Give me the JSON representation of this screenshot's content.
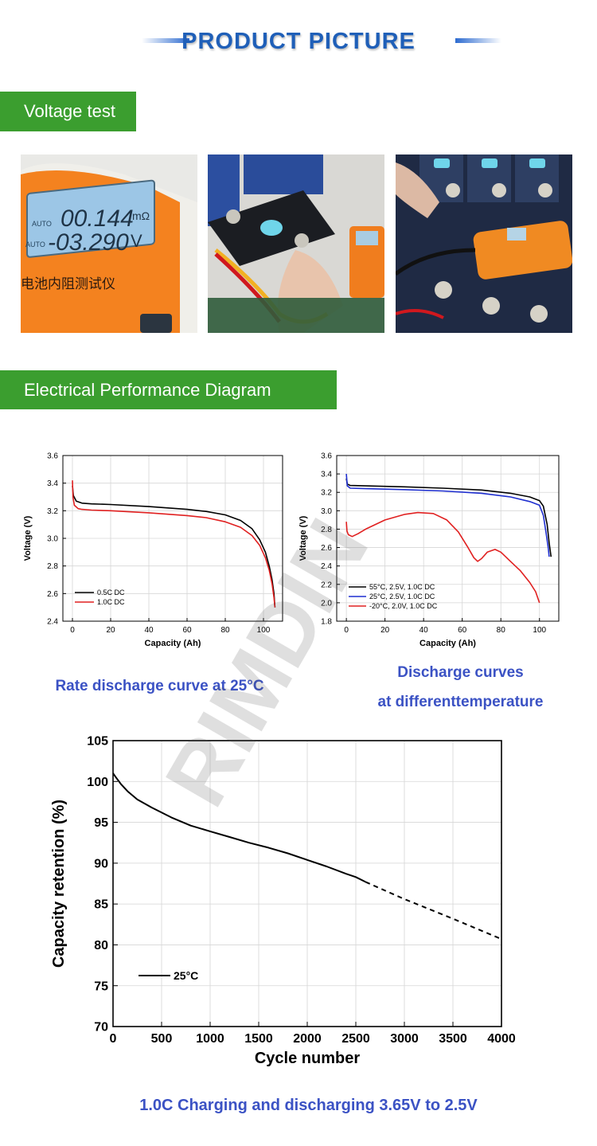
{
  "header": {
    "title": "PRODUCT PICTURE"
  },
  "sections": {
    "voltage_test": "Voltage test",
    "electrical_performance": "Electrical Performance Diagram"
  },
  "photos": {
    "meter_reading_1": "00.144",
    "meter_unit_1": "mΩ",
    "meter_reading_2": "-03.290",
    "meter_unit_2": "V",
    "meter_auto": "AUTO",
    "meter_brand_text": "电池内阻测试仪"
  },
  "captions": {
    "rate_discharge": "Rate discharge curve at 25°C",
    "discharge_temp_line1": "Discharge curves",
    "discharge_temp_line2": "at differenttemperature",
    "cycle": "1.0C Charging and discharging 3.65V to 2.5V"
  },
  "watermark": "RIMDIN",
  "colors": {
    "accent_blue": "#1f5fb8",
    "banner_green": "#3b9e2f",
    "caption_blue": "#3b52c4"
  },
  "chart_data": [
    {
      "type": "line",
      "xlabel": "Capacity (Ah)",
      "ylabel": "Voltage (V)",
      "xlim": [
        -5,
        110
      ],
      "ylim": [
        2.4,
        3.6
      ],
      "xticks": [
        0,
        20,
        40,
        60,
        80,
        100
      ],
      "yticks": [
        2.4,
        2.6,
        2.8,
        3.0,
        3.2,
        3.4,
        3.6
      ],
      "grid": true,
      "legend": "bottom-left",
      "series": [
        {
          "name": "0.5C DC",
          "color": "#000000",
          "x": [
            0,
            0.5,
            2,
            5,
            10,
            20,
            40,
            60,
            70,
            80,
            88,
            94,
            98,
            101,
            103,
            104.5,
            105.5,
            106
          ],
          "y": [
            3.38,
            3.31,
            3.27,
            3.255,
            3.25,
            3.245,
            3.23,
            3.21,
            3.195,
            3.17,
            3.13,
            3.07,
            2.99,
            2.9,
            2.8,
            2.7,
            2.6,
            2.5
          ]
        },
        {
          "name": "1.0C DC",
          "color": "#e02020",
          "x": [
            0,
            0.3,
            1,
            3,
            5,
            10,
            20,
            40,
            60,
            70,
            80,
            88,
            94,
            98,
            101,
            103,
            104.5,
            105.5,
            106
          ],
          "y": [
            3.42,
            3.3,
            3.24,
            3.215,
            3.21,
            3.205,
            3.2,
            3.185,
            3.165,
            3.15,
            3.12,
            3.08,
            3.02,
            2.95,
            2.86,
            2.77,
            2.67,
            2.57,
            2.5
          ]
        }
      ]
    },
    {
      "type": "line",
      "xlabel": "Capacity (Ah)",
      "ylabel": "Voltage (V)",
      "xlim": [
        -5,
        110
      ],
      "ylim": [
        1.8,
        3.6
      ],
      "xticks": [
        0,
        20,
        40,
        60,
        80,
        100
      ],
      "yticks": [
        1.8,
        2.0,
        2.2,
        2.4,
        2.6,
        2.8,
        3.0,
        3.2,
        3.4,
        3.6
      ],
      "grid": true,
      "legend": "bottom-left",
      "series": [
        {
          "name": "55°C, 2.5V, 1.0C DC",
          "color": "#000000",
          "x": [
            0,
            0.5,
            2,
            10,
            30,
            50,
            70,
            85,
            95,
            100,
            102,
            104,
            105,
            106
          ],
          "y": [
            3.35,
            3.29,
            3.275,
            3.27,
            3.26,
            3.245,
            3.225,
            3.19,
            3.15,
            3.11,
            3.05,
            2.85,
            2.65,
            2.5
          ]
        },
        {
          "name": "25°C, 2.5V, 1.0C DC",
          "color": "#1f2fd0",
          "x": [
            0,
            0.5,
            2,
            10,
            30,
            50,
            70,
            85,
            95,
            100,
            102,
            103.5,
            104.5,
            105
          ],
          "y": [
            3.4,
            3.27,
            3.245,
            3.24,
            3.23,
            3.215,
            3.19,
            3.15,
            3.1,
            3.06,
            2.95,
            2.75,
            2.6,
            2.5
          ]
        },
        {
          "name": "-20°C, 2.0V, 1.0C DC",
          "color": "#e02020",
          "x": [
            0,
            0.3,
            1,
            3,
            6,
            10,
            20,
            30,
            37,
            45,
            52,
            58,
            63,
            66,
            68,
            70,
            73,
            77,
            80,
            85,
            90,
            95,
            98,
            100
          ],
          "y": [
            2.88,
            2.78,
            2.74,
            2.72,
            2.75,
            2.8,
            2.9,
            2.96,
            2.98,
            2.97,
            2.9,
            2.77,
            2.6,
            2.49,
            2.45,
            2.48,
            2.55,
            2.58,
            2.55,
            2.45,
            2.35,
            2.22,
            2.12,
            2.0
          ]
        }
      ]
    },
    {
      "type": "line",
      "xlabel": "Cycle number",
      "ylabel": "Capacity retention (%)",
      "xlim": [
        0,
        4000
      ],
      "ylim": [
        70,
        105
      ],
      "xticks": [
        0,
        500,
        1000,
        1500,
        2000,
        2500,
        3000,
        3500,
        4000
      ],
      "yticks": [
        70,
        75,
        80,
        85,
        90,
        95,
        100,
        105
      ],
      "grid": true,
      "legend": "bottom-left",
      "series": [
        {
          "name": "25°C",
          "color": "#000000",
          "style": "solid",
          "x": [
            0,
            30,
            80,
            150,
            250,
            400,
            600,
            800,
            1000,
            1200,
            1400,
            1600,
            1800,
            2000,
            2200,
            2400,
            2500,
            2600
          ],
          "y": [
            101,
            100.5,
            99.7,
            98.8,
            97.8,
            96.8,
            95.6,
            94.6,
            93.9,
            93.2,
            92.5,
            91.9,
            91.2,
            90.4,
            89.6,
            88.7,
            88.3,
            87.7
          ]
        },
        {
          "name": "",
          "color": "#000000",
          "style": "dashed",
          "x": [
            2600,
            3000,
            3500,
            4000
          ],
          "y": [
            87.7,
            85.6,
            83.2,
            80.7
          ]
        }
      ]
    }
  ]
}
